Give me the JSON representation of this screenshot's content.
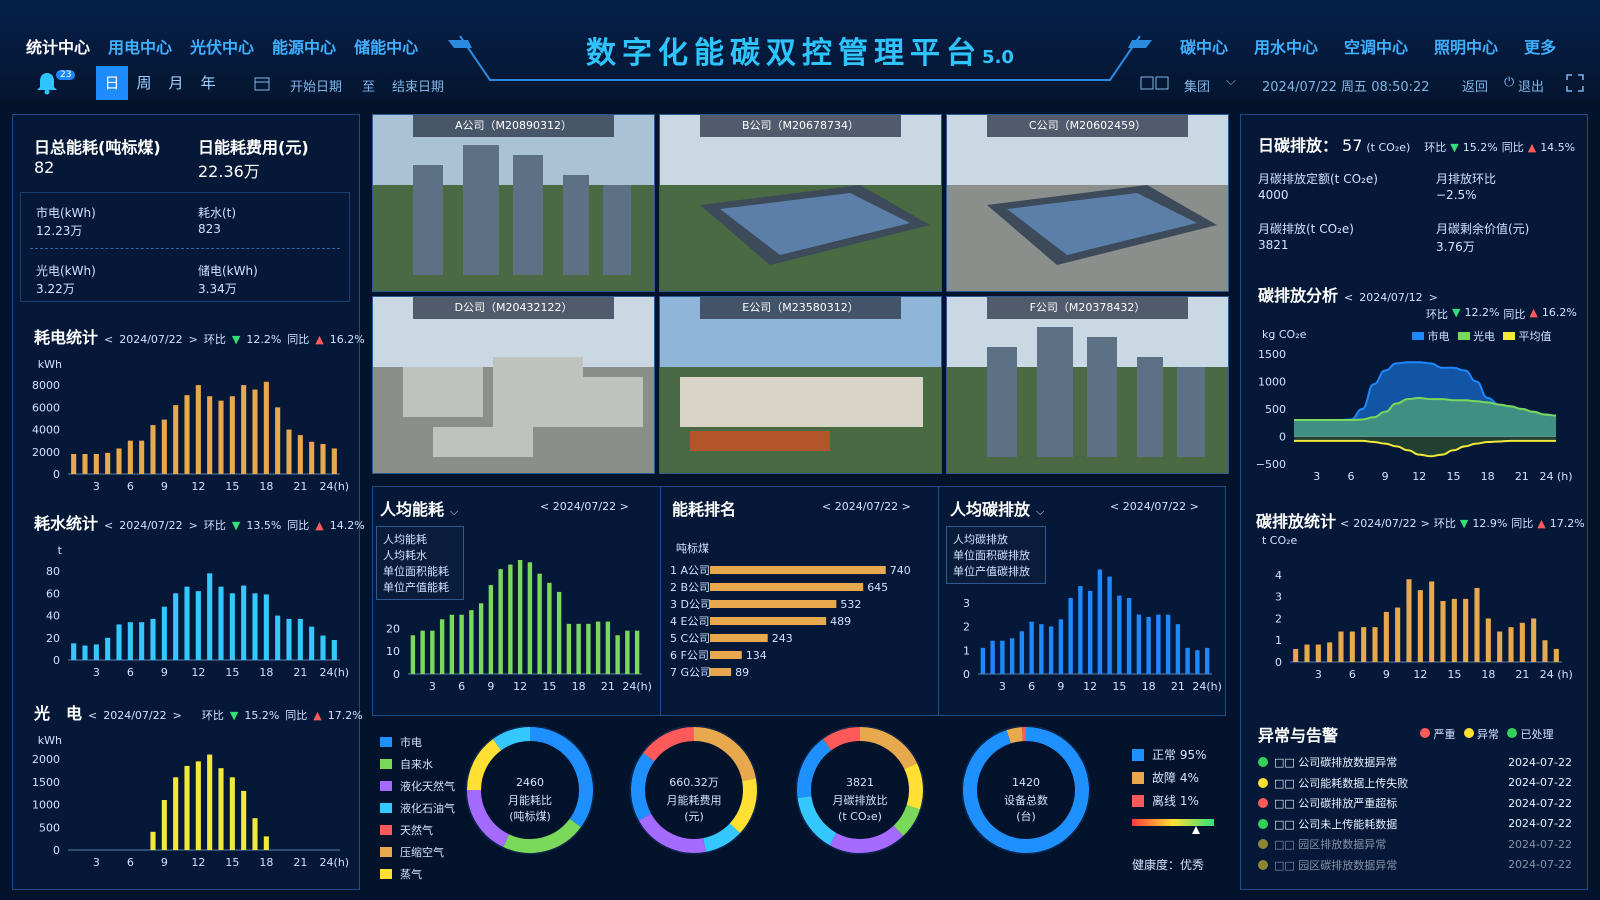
{
  "header": {
    "nav_left": [
      "统计中心",
      "用电中心",
      "光伏中心",
      "能源中心",
      "储能中心"
    ],
    "nav_right": [
      "碳中心",
      "用水中心",
      "空调中心",
      "照明中心",
      "更多"
    ],
    "title": "数字化能碳双控管理平台",
    "version": "5.0",
    "bell_count": "23",
    "periods": [
      "日",
      "周",
      "月",
      "年"
    ],
    "start_date": "开始日期",
    "to": "至",
    "end_date": "结束日期",
    "group": "集团",
    "datetime": "2024/07/22 周五 08:50:22",
    "back": "返回",
    "logout": "退出"
  },
  "left": {
    "kpi": {
      "total_label": "日总能耗(吨标煤)",
      "total_value": "82",
      "cost_label": "日能耗费用(元)",
      "cost_value": "22.36万",
      "grid_label": "市电(kWh)",
      "grid_value": "12.23万",
      "water_label": "耗水(t)",
      "water_value": "823",
      "pv_label": "光电(kWh)",
      "pv_value": "3.22万",
      "storage_label": "储电(kWh)",
      "storage_value": "3.34万"
    },
    "power": {
      "title": "耗电统计",
      "date": "2024/07/22",
      "mom": "环比",
      "mom_v": "12.2%",
      "yoy": "同比",
      "yoy_v": "16.2%",
      "unit": "kWh",
      "ticks": [
        "8000",
        "6000",
        "4000",
        "2000",
        "0"
      ],
      "xt": [
        "3",
        "6",
        "9",
        "12",
        "15",
        "18",
        "21",
        "24(h)"
      ]
    },
    "water": {
      "title": "耗水统计",
      "date": "2024/07/22",
      "mom": "环比",
      "mom_v": "13.5%",
      "yoy": "同比",
      "yoy_v": "14.2%",
      "unit": "t",
      "ticks": [
        "80",
        "60",
        "40",
        "20",
        "0"
      ],
      "xt": [
        "3",
        "6",
        "9",
        "12",
        "15",
        "18",
        "21",
        "24(h)"
      ]
    },
    "pv": {
      "title": "光　电",
      "date": "2024/07/22",
      "mom": "环比",
      "mom_v": "15.2%",
      "yoy": "同比",
      "yoy_v": "17.2%",
      "unit": "kWh",
      "ticks": [
        "2000",
        "1500",
        "1000",
        "500",
        "0"
      ],
      "xt": [
        "3",
        "6",
        "9",
        "12",
        "15",
        "18",
        "21",
        "24(h)"
      ]
    }
  },
  "photos": [
    "A公司（M20890312）",
    "B公司（M20678734）",
    "C公司（M20602459）",
    "D公司（M20432122）",
    "E公司（M23580312）",
    "F公司（M20378432）"
  ],
  "mid": {
    "per_capita": {
      "title": "人均能耗",
      "date": "2024/07/22",
      "menu": [
        "人均能耗",
        "人均耗水",
        "单位面积能耗",
        "单位产值能耗"
      ],
      "ticks": [
        "20",
        "10",
        "0"
      ],
      "xt": [
        "3",
        "6",
        "9",
        "12",
        "15",
        "18",
        "21",
        "24(h)"
      ]
    },
    "ranking": {
      "title": "能耗排名",
      "date": "2024/07/22",
      "unit": "吨标煤",
      "names": [
        "1  A公司",
        "2  B公司",
        "3  D公司",
        "4  E公司",
        "5  C公司",
        "6  F公司",
        "7  G公司"
      ],
      "vlabels": [
        "740",
        "645",
        "532",
        "489",
        "243",
        "134",
        "89"
      ]
    },
    "per_carbon": {
      "title": "人均碳排放",
      "date": "2024/07/22",
      "menu": [
        "人均碳排放",
        "单位面积碳排放",
        "单位产值碳排放"
      ],
      "ticks": [
        "3",
        "2",
        "1",
        "0"
      ],
      "xt": [
        "3",
        "6",
        "9",
        "12",
        "15",
        "18",
        "21",
        "24(h)"
      ]
    }
  },
  "bottom": {
    "legend": [
      "市电",
      "自来水",
      "液化天然气",
      "液化石油气",
      "天然气",
      "压缩空气",
      "蒸气"
    ],
    "donut1": {
      "value": "2460",
      "l1": "月能耗比",
      "l2": "(吨标煤)"
    },
    "donut2": {
      "value": "660.32万",
      "l1": "月能耗费用",
      "l2": "(元)"
    },
    "donut3": {
      "value": "3821",
      "l1": "月碳排放比",
      "l2": "(t CO₂e)"
    },
    "donut4": {
      "value": "1420",
      "l1": "设备总数",
      "l2": "(台)"
    },
    "status": [
      "正常 95%",
      "故障 4%",
      "离线 1%"
    ],
    "health_label": "健康度：",
    "health_value": "优秀"
  },
  "right": {
    "daily_label": "日碳排放：",
    "daily_value": "57",
    "daily_unit": "(t CO₂e)",
    "mom": "环比",
    "mom_v": "15.2%",
    "yoy": "同比",
    "yoy_v": "14.5%",
    "quota_label": "月碳排放定额(t CO₂e)",
    "quota_value": "4000",
    "mcomp_label": "月排放环比",
    "mcomp_value": "−2.5%",
    "mem_label": "月碳排放(t CO₂e)",
    "mem_value": "3821",
    "remain_label": "月碳剩余价值(元)",
    "remain_value": "3.76万",
    "analysis": {
      "title": "碳排放分析",
      "date": "2024/07/12",
      "mom": "环比",
      "mom_v": "12.2%",
      "yoy": "同比",
      "yoy_v": "16.2%",
      "unit": "kg CO₂e",
      "legend": [
        "市电",
        "光电",
        "平均值"
      ],
      "ticks": [
        "1500",
        "1000",
        "500",
        "0",
        "−500"
      ],
      "xt": [
        "3",
        "6",
        "9",
        "12",
        "15",
        "18",
        "21",
        "24 (h)"
      ]
    },
    "stats": {
      "title": "碳排放统计",
      "date": "2024/07/22",
      "mom": "环比",
      "mom_v": "12.9%",
      "yoy": "同比",
      "yoy_v": "17.2%",
      "unit": "t CO₂e",
      "ticks": [
        "4",
        "3",
        "2",
        "1",
        "0"
      ],
      "xt": [
        "3",
        "6",
        "9",
        "12",
        "15",
        "18",
        "21",
        "24 (h)"
      ]
    },
    "alarms": {
      "title": "异常与告警",
      "legend": [
        "严重",
        "异常",
        "已处理"
      ],
      "items": [
        {
          "text": "□□ 公司碳排放数据异常",
          "date": "2024-07-22",
          "c": "#33d05a"
        },
        {
          "text": "□□ 公司能耗数据上传失败",
          "date": "2024-07-22",
          "c": "#ffe033"
        },
        {
          "text": "□□ 公司碳排放严重超标",
          "date": "2024-07-22",
          "c": "#ff5a5a"
        },
        {
          "text": "□□ 公司未上传能耗数据",
          "date": "2024-07-22",
          "c": "#33d05a"
        },
        {
          "text": "□□ 园区排放数据异常",
          "date": "2024-07-22",
          "c": "#ffe033"
        },
        {
          "text": "□□ 园区碳排放数据异常",
          "date": "2024-07-22",
          "c": "#ffe033"
        }
      ]
    }
  },
  "chart_data": [
    {
      "type": "bar",
      "title": "耗电统计",
      "ylabel": "kWh",
      "ylim": [
        0,
        9000
      ],
      "x": [
        1,
        2,
        3,
        4,
        5,
        6,
        7,
        8,
        9,
        10,
        11,
        12,
        13,
        14,
        15,
        16,
        17,
        18,
        19,
        20,
        21,
        22,
        23,
        24
      ],
      "values": [
        1800,
        1800,
        1800,
        1900,
        2300,
        3000,
        3000,
        4400,
        4900,
        6200,
        7100,
        8000,
        7000,
        6600,
        7000,
        8000,
        7600,
        8300,
        6000,
        4000,
        3500,
        2900,
        2700,
        2300
      ]
    },
    {
      "type": "bar",
      "title": "耗水统计",
      "ylabel": "t",
      "ylim": [
        0,
        90
      ],
      "x": [
        1,
        2,
        3,
        4,
        5,
        6,
        7,
        8,
        9,
        10,
        11,
        12,
        13,
        14,
        15,
        16,
        17,
        18,
        19,
        20,
        21,
        22,
        23,
        24
      ],
      "values": [
        15,
        13,
        14,
        20,
        32,
        34,
        34,
        37,
        48,
        60,
        66,
        62,
        78,
        66,
        60,
        67,
        60,
        59,
        40,
        37,
        37,
        30,
        22,
        18
      ]
    },
    {
      "type": "bar",
      "title": "光电",
      "ylabel": "kWh",
      "ylim": [
        0,
        2200
      ],
      "x": [
        1,
        2,
        3,
        4,
        5,
        6,
        7,
        8,
        9,
        10,
        11,
        12,
        13,
        14,
        15,
        16,
        17,
        18,
        19,
        20,
        21,
        22,
        23,
        24
      ],
      "values": [
        0,
        0,
        0,
        0,
        0,
        0,
        0,
        400,
        1100,
        1600,
        1850,
        1950,
        2100,
        1800,
        1600,
        1300,
        700,
        300,
        0,
        0,
        0,
        0,
        0,
        0
      ]
    },
    {
      "type": "bar",
      "title": "人均能耗",
      "ylim": [
        0,
        50
      ],
      "x": [
        1,
        2,
        3,
        4,
        5,
        6,
        7,
        8,
        9,
        10,
        11,
        12,
        13,
        14,
        15,
        16,
        17,
        18,
        19,
        20,
        21,
        22,
        23,
        24
      ],
      "values": [
        17,
        19,
        19,
        24,
        26,
        26,
        28,
        31,
        39,
        46,
        48,
        50,
        49,
        44,
        40,
        36,
        22,
        22,
        22,
        23,
        23,
        17,
        19,
        19
      ]
    },
    {
      "type": "bar",
      "title": "能耗排名",
      "categories": [
        "A公司",
        "B公司",
        "D公司",
        "E公司",
        "C公司",
        "F公司",
        "G公司"
      ],
      "values": [
        740,
        645,
        532,
        489,
        243,
        134,
        89
      ],
      "ylabel": "吨标煤"
    },
    {
      "type": "bar",
      "title": "人均碳排放",
      "ylim": [
        0,
        4.8
      ],
      "x": [
        1,
        2,
        3,
        4,
        5,
        6,
        7,
        8,
        9,
        10,
        11,
        12,
        13,
        14,
        15,
        16,
        17,
        18,
        19,
        20,
        21,
        22,
        23,
        24
      ],
      "values": [
        1.1,
        1.4,
        1.4,
        1.5,
        1.8,
        2.2,
        2.1,
        2.0,
        2.3,
        3.2,
        3.7,
        3.5,
        4.4,
        4.1,
        3.3,
        3.2,
        2.5,
        2.4,
        2.5,
        2.5,
        2.1,
        1.1,
        1.0,
        1.1
      ]
    },
    {
      "type": "area",
      "title": "碳排放分析",
      "ylabel": "kg CO₂e",
      "ylim": [
        -500,
        1500
      ],
      "x": [
        1,
        2,
        3,
        4,
        5,
        6,
        7,
        8,
        9,
        10,
        11,
        12,
        13,
        14,
        15,
        16,
        17,
        18,
        19,
        20,
        21,
        22,
        23,
        24
      ],
      "series": [
        {
          "name": "市电",
          "values": [
            300,
            300,
            300,
            300,
            300,
            310,
            500,
            950,
            1200,
            1330,
            1350,
            1350,
            1330,
            1250,
            1250,
            1200,
            1000,
            700,
            580,
            550,
            500,
            450,
            400,
            380
          ]
        },
        {
          "name": "光电",
          "values": [
            300,
            300,
            300,
            300,
            300,
            300,
            310,
            350,
            450,
            600,
            680,
            700,
            680,
            680,
            660,
            660,
            640,
            620,
            580,
            550,
            500,
            450,
            400,
            380
          ]
        },
        {
          "name": "平均值",
          "values": [
            -80,
            -80,
            -80,
            -80,
            -80,
            -80,
            -80,
            -100,
            -130,
            -180,
            -250,
            -330,
            -360,
            -330,
            -250,
            -180,
            -130,
            -100,
            -90,
            -80,
            -80,
            -80,
            -80,
            -80
          ]
        }
      ]
    },
    {
      "type": "bar",
      "title": "碳排放统计",
      "ylabel": "t CO₂e",
      "ylim": [
        0,
        4.5
      ],
      "x": [
        1,
        2,
        3,
        4,
        5,
        6,
        7,
        8,
        9,
        10,
        11,
        12,
        13,
        14,
        15,
        16,
        17,
        18,
        19,
        20,
        21,
        22,
        23,
        24
      ],
      "values": [
        0.6,
        0.8,
        0.8,
        0.9,
        1.4,
        1.4,
        1.6,
        1.6,
        2.3,
        2.5,
        3.8,
        3.3,
        3.7,
        2.8,
        2.9,
        2.9,
        3.4,
        2.0,
        1.4,
        1.6,
        1.8,
        2.0,
        1.0,
        0.6
      ]
    },
    {
      "type": "pie",
      "title": "月能耗比",
      "values": [
        35,
        22,
        18,
        15,
        10
      ],
      "colors": [
        "#1e90ff",
        "#7ad85a",
        "#a56bff",
        "#ffe033",
        "#35c8ff"
      ]
    },
    {
      "type": "pie",
      "title": "月能耗费用",
      "values": [
        22,
        15,
        10,
        20,
        18,
        15
      ],
      "colors": [
        "#e8a84e",
        "#ffe033",
        "#35c8ff",
        "#a56bff",
        "#1e90ff",
        "#ff5a5a"
      ]
    },
    {
      "type": "pie",
      "title": "月碳排放比",
      "values": [
        18,
        12,
        8,
        20,
        15,
        17,
        10
      ],
      "colors": [
        "#e8a84e",
        "#ffe033",
        "#7ad85a",
        "#a56bff",
        "#35c8ff",
        "#1e90ff",
        "#ff5a5a"
      ]
    },
    {
      "type": "pie",
      "title": "设备总数",
      "values": [
        95,
        4,
        1
      ],
      "colors": [
        "#1e90ff",
        "#e8a84e",
        "#ff5a5a"
      ]
    }
  ],
  "colors": {
    "power": "#e8a84e",
    "water": "#35c8ff",
    "pv": "#f2ea3a",
    "green": "#7ad85a",
    "blue": "#1e88ff",
    "bg": "#04132c",
    "accent": "#2ec4ff"
  }
}
